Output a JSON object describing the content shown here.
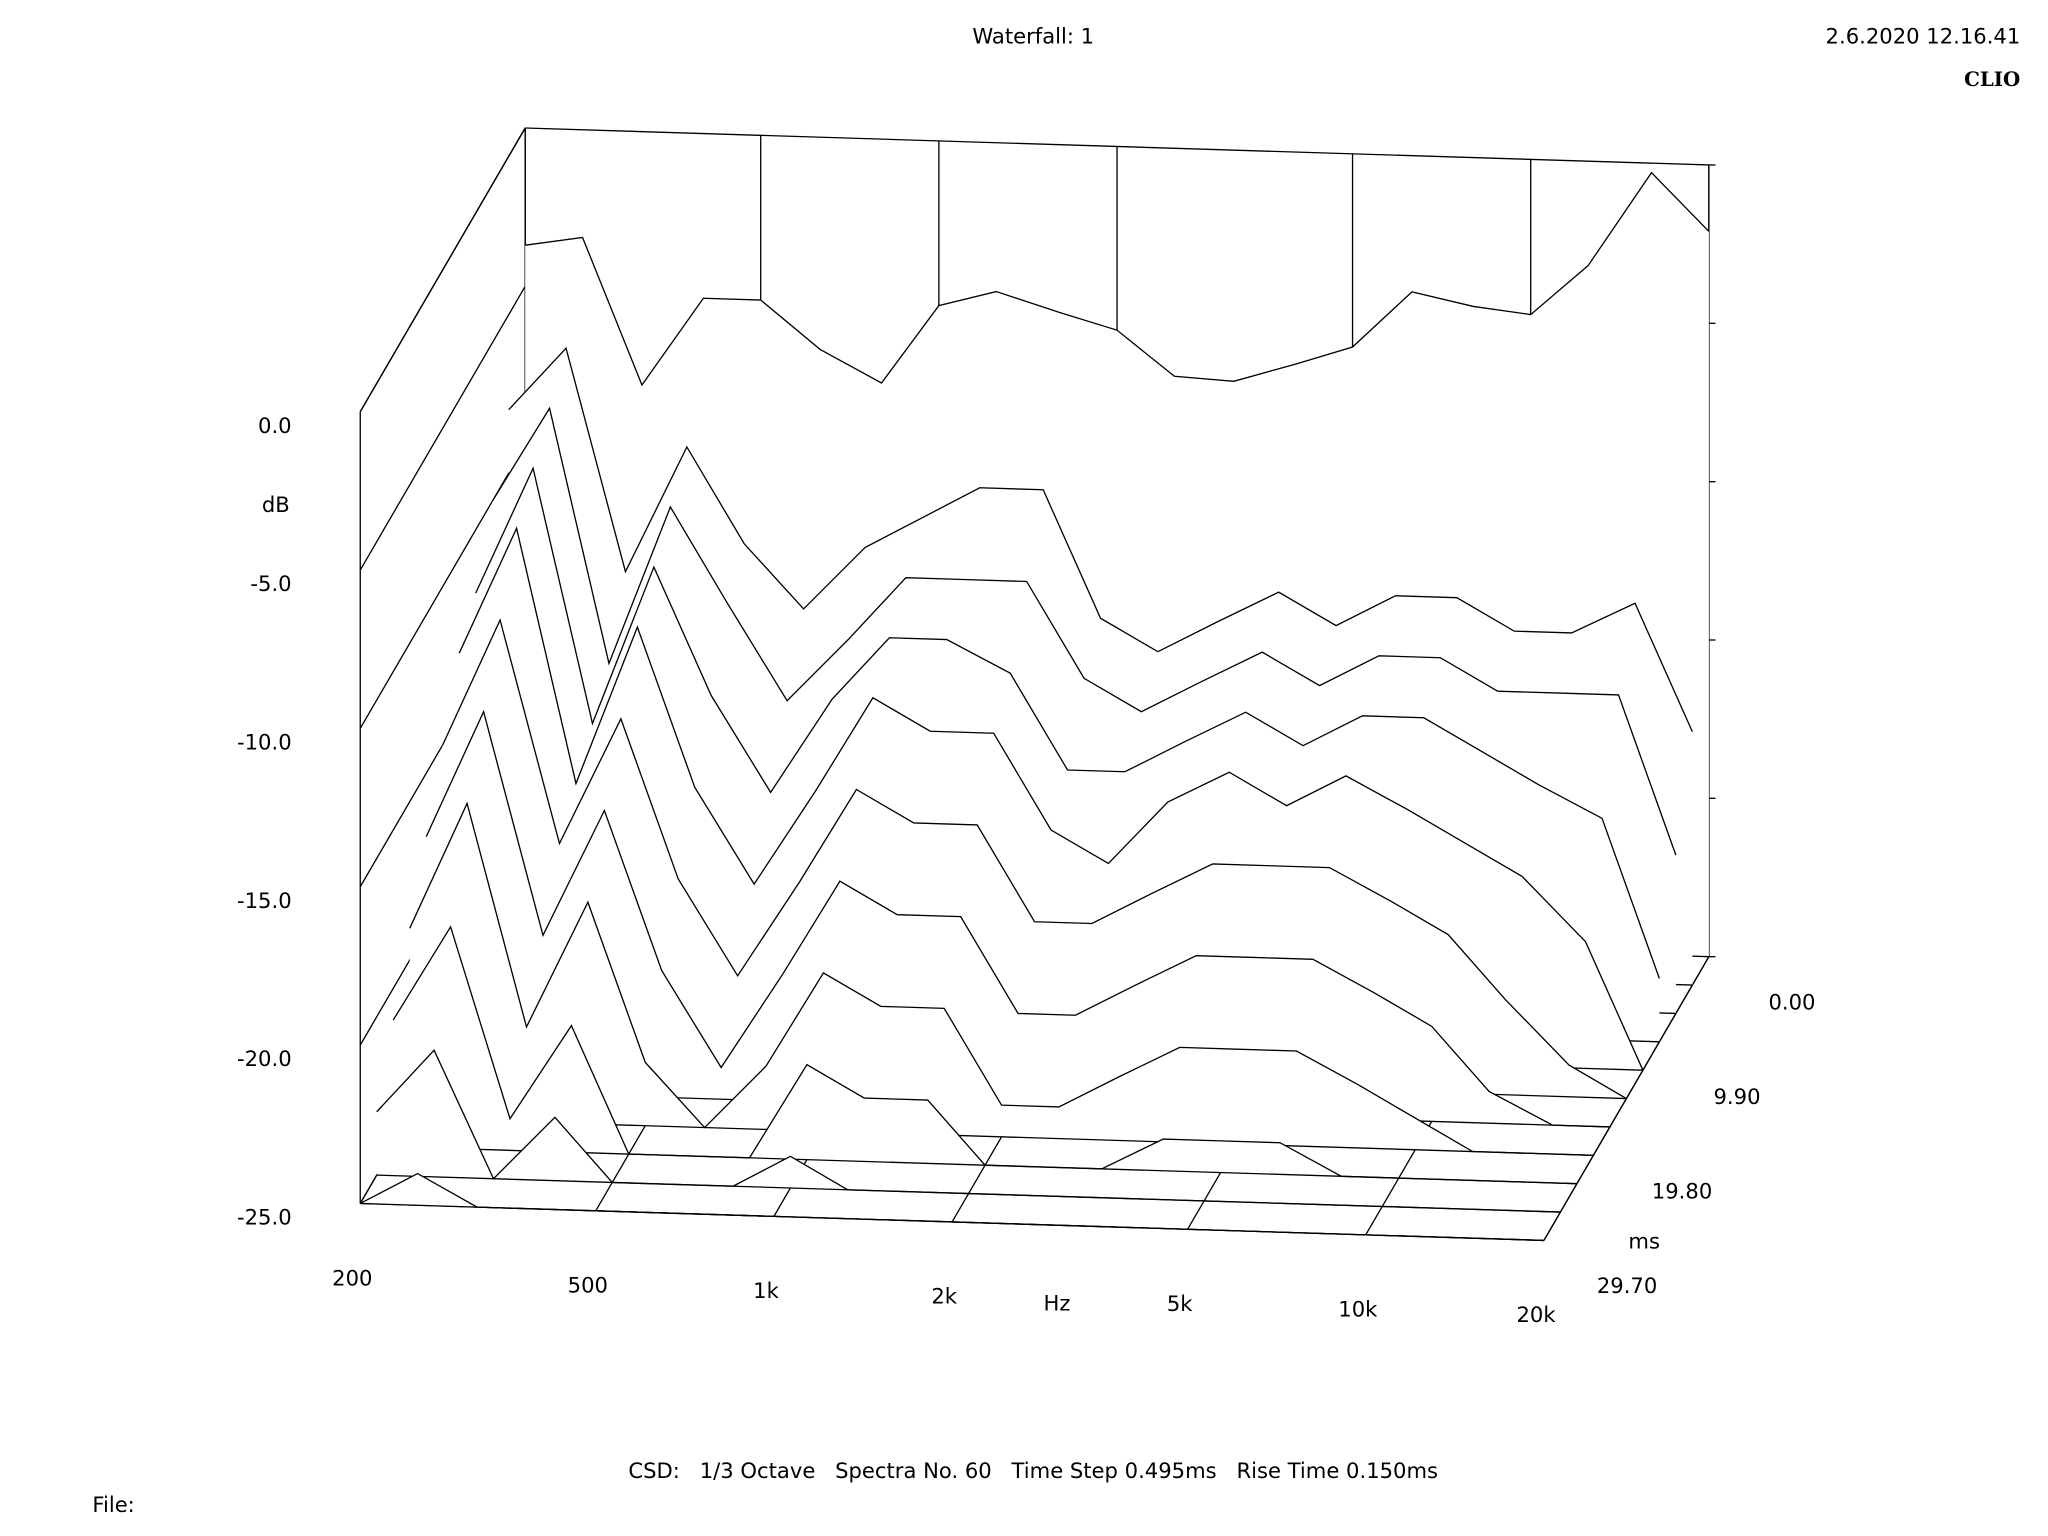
{
  "chart_data": {
    "type": "waterfall",
    "title": "Waterfall: 1",
    "timestamp": "2.6.2020 12.16.41",
    "brand": "CLIO",
    "x_label": "Hz",
    "y_label": "dB",
    "z_label": "ms",
    "footer": [
      "CSD:",
      "1/3 Octave",
      "Spectra No. 60",
      "Time Step 0.495ms",
      "Rise Time 0.150ms"
    ],
    "file_label": "File:",
    "xscale": "log",
    "xlim": [
      200,
      20000
    ],
    "xticks": [
      200,
      500,
      {
        "value": 1000,
        "label": "1k"
      },
      {
        "value": 2000,
        "label": "2k"
      },
      {
        "value": 5000,
        "label": "5k"
      },
      {
        "value": 10000,
        "label": "10k"
      },
      {
        "value": 20000,
        "label": "20k"
      }
    ],
    "ylim": [
      -25,
      0
    ],
    "yticks": [
      {
        "value": 0,
        "label": "0.0"
      },
      {
        "value": -5,
        "label": "-5.0"
      },
      {
        "value": -10,
        "label": "-10.0"
      },
      {
        "value": -15,
        "label": "-15.0"
      },
      {
        "value": -20,
        "label": "-20.0"
      },
      {
        "value": -25,
        "label": "-25.0"
      }
    ],
    "zlim": [
      0,
      29.7
    ],
    "zticks": [
      {
        "value": 0,
        "label": "0.00"
      },
      {
        "value": 9.9,
        "label": "9.90"
      },
      {
        "value": 19.8,
        "label": "19.80"
      },
      {
        "value": 29.7,
        "label": "29.70"
      }
    ],
    "color": "#000000",
    "x": [
      200,
      250,
      315,
      400,
      500,
      630,
      800,
      1000,
      1250,
      1600,
      2000,
      2500,
      3150,
      4000,
      5000,
      6300,
      8000,
      10000,
      12500,
      16000,
      20000
    ],
    "series": [
      {
        "z": 0,
        "values": [
          -3.7,
          -3.4,
          -8,
          -5.2,
          -5.2,
          -6.7,
          -7.7,
          -5.2,
          -4.7,
          -5.3,
          -5.8,
          -7.2,
          -7.3,
          -6.7,
          -6.1,
          -4.3,
          -4.7,
          -4.9,
          -3.3,
          -0.3,
          -2.1
        ]
      },
      {
        "z": 2.97,
        "values": [
          -8,
          -6,
          -13,
          -9,
          -12,
          -14,
          -12,
          -11,
          -10,
          -10,
          -14,
          -15,
          -14,
          -13,
          -14,
          -13,
          -13,
          -14,
          -14,
          -13,
          -17
        ]
      },
      {
        "z": 5.94,
        "values": [
          -10,
          -7,
          -15,
          -10,
          -13,
          -16,
          -14,
          -12,
          -12,
          -12,
          -15,
          -16,
          -15,
          -14,
          -15,
          -14,
          -14,
          -15,
          -15,
          -15,
          -20
        ]
      },
      {
        "z": 8.91,
        "values": [
          -12,
          -8,
          -16,
          -11,
          -15,
          -18,
          -15,
          -13,
          -13,
          -14,
          -17,
          -17,
          -16,
          -15,
          -16,
          -15,
          -15,
          -16,
          -17,
          -18,
          -23
        ]
      },
      {
        "z": 11.88,
        "values": [
          -13,
          -9,
          -17,
          -12,
          -17,
          -20,
          -17,
          -14,
          -15,
          -15,
          -18,
          -19,
          -17,
          -16,
          -17,
          -16,
          -17,
          -18,
          -19,
          -21,
          -25
        ]
      },
      {
        "z": 14.85,
        "values": [
          -15,
          -11,
          -18,
          -14,
          -19,
          -22,
          -19,
          -16,
          -17,
          -17,
          -20,
          -20,
          -19,
          -18,
          -18,
          -18,
          -19,
          -20,
          -22,
          -24,
          -25
        ]
      },
      {
        "z": 17.82,
        "values": [
          -17,
          -13,
          -20,
          -16,
          -21,
          -24,
          -21,
          -18,
          -19,
          -19,
          -22,
          -22,
          -21,
          -20,
          -20,
          -20,
          -21,
          -22,
          -24,
          -25,
          -25
        ]
      },
      {
        "z": 20.79,
        "values": [
          -19,
          -15,
          -22,
          -18,
          -23,
          -25,
          -23,
          -20,
          -21,
          -21,
          -24,
          -24,
          -23,
          -22,
          -22,
          -22,
          -23,
          -24,
          -25,
          -25,
          -25
        ]
      },
      {
        "z": 23.76,
        "values": [
          -21,
          -18,
          -24,
          -21,
          -25,
          -25,
          -25,
          -22,
          -23,
          -23,
          -25,
          -25,
          -25,
          -24,
          -24,
          -24,
          -25,
          -25,
          -25,
          -25,
          -25
        ]
      },
      {
        "z": 26.73,
        "values": [
          -23,
          -21,
          -25,
          -23,
          -25,
          -25,
          -25,
          -24,
          -25,
          -25,
          -25,
          -25,
          -25,
          -25,
          -25,
          -25,
          -25,
          -25,
          -25,
          -25,
          -25
        ]
      },
      {
        "z": 29.7,
        "values": [
          -25,
          -24,
          -25,
          -25,
          -25,
          -25,
          -25,
          -25,
          -25,
          -25,
          -25,
          -25,
          -25,
          -25,
          -25,
          -25,
          -25,
          -25,
          -25,
          -25,
          -25
        ]
      }
    ]
  }
}
